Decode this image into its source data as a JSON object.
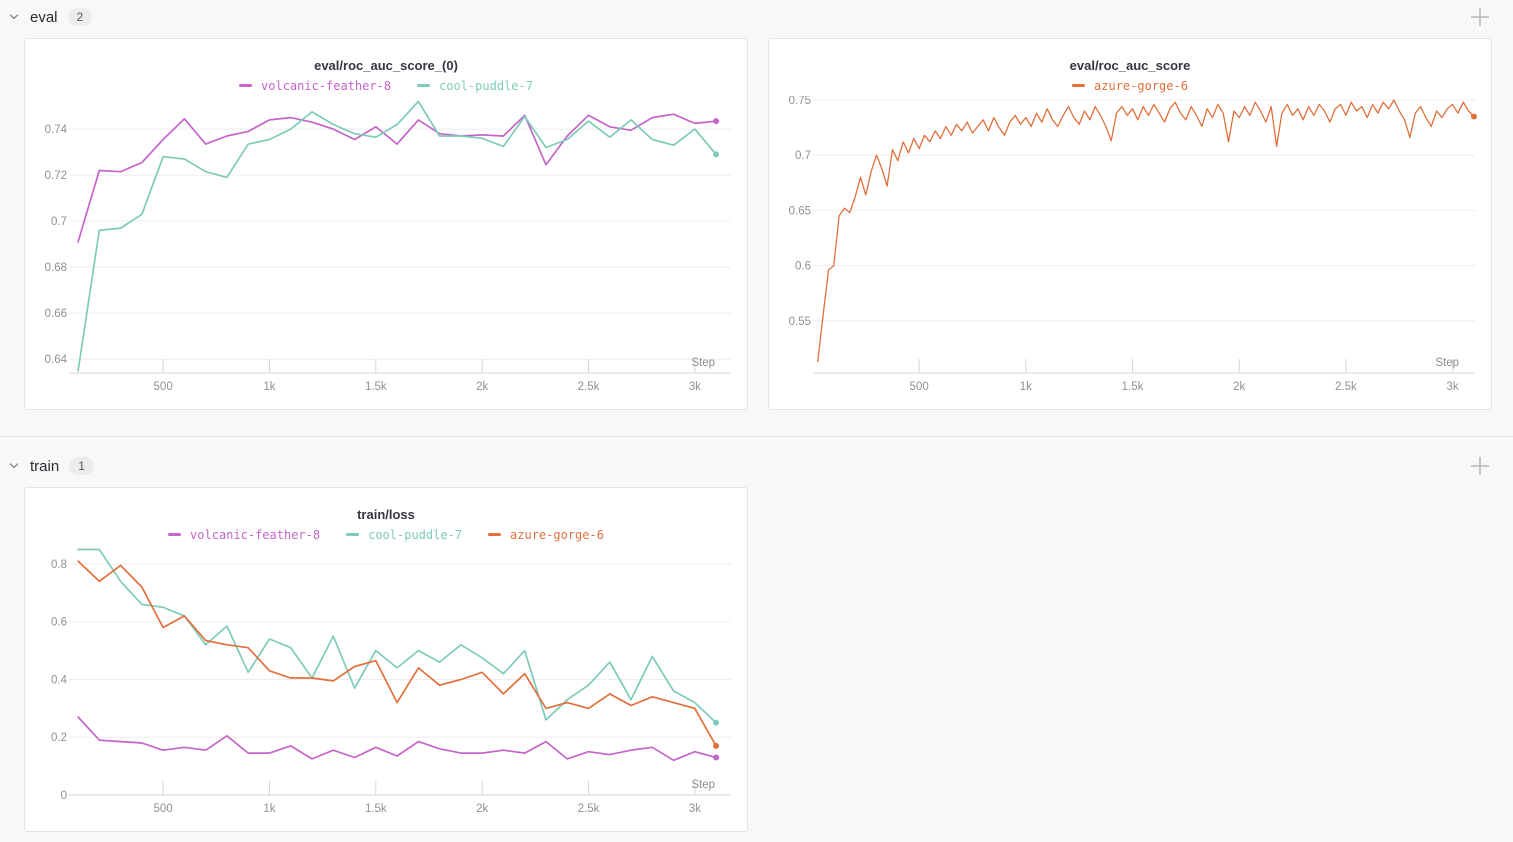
{
  "sections": [
    {
      "label": "eval",
      "count": "2"
    },
    {
      "label": "train",
      "count": "1"
    }
  ],
  "icons": {
    "chevron": "chevron-down",
    "add_panel": "plus"
  },
  "colors": {
    "magenta": "#C564C9",
    "teal": "#7DCBBA",
    "orange": "#E1703C",
    "grid": "#ededee",
    "axis": "#d6d6d8",
    "tick_text": "#8e9095"
  },
  "chart_data": [
    {
      "type": "line",
      "title": "eval/roc_auc_score_(0)",
      "xlabel": "Step",
      "legend_position": "top",
      "grid": "horizontal",
      "x_domain": [
        95,
        3170
      ],
      "y_domain": [
        0.634,
        0.7544
      ],
      "line_width": 1.7,
      "x_ticks": [
        {
          "v": 500,
          "label": "500"
        },
        {
          "v": 1000,
          "label": "1k"
        },
        {
          "v": 1500,
          "label": "1.5k"
        },
        {
          "v": 2000,
          "label": "2k"
        },
        {
          "v": 2500,
          "label": "2.5k"
        },
        {
          "v": 3000,
          "label": "3k"
        }
      ],
      "y_ticks": [
        {
          "v": 0.64,
          "label": "0.64"
        },
        {
          "v": 0.66,
          "label": "0.66"
        },
        {
          "v": 0.68,
          "label": "0.68"
        },
        {
          "v": 0.7,
          "label": "0.7"
        },
        {
          "v": 0.72,
          "label": "0.72"
        },
        {
          "v": 0.74,
          "label": "0.74"
        }
      ],
      "series": [
        {
          "name": "volcanic-feather-8",
          "color": "#C564C9",
          "x_start": 100,
          "x_step": 100,
          "values": [
            0.691,
            0.722,
            0.7215,
            0.7255,
            0.7355,
            0.7445,
            0.7335,
            0.737,
            0.739,
            0.744,
            0.745,
            0.743,
            0.74,
            0.7355,
            0.741,
            0.7335,
            0.744,
            0.738,
            0.737,
            0.7375,
            0.737,
            0.746,
            0.7245,
            0.737,
            0.746,
            0.741,
            0.7395,
            0.745,
            0.7465,
            0.7425,
            0.7435
          ]
        },
        {
          "name": "cool-puddle-7",
          "color": "#7DCBBA",
          "x_start": 100,
          "x_step": 100,
          "values": [
            0.635,
            0.696,
            0.697,
            0.703,
            0.728,
            0.727,
            0.7215,
            0.719,
            0.7335,
            0.7355,
            0.74,
            0.7475,
            0.742,
            0.738,
            0.7365,
            0.742,
            0.752,
            0.737,
            0.737,
            0.736,
            0.7325,
            0.7455,
            0.732,
            0.7355,
            0.7435,
            0.7365,
            0.744,
            0.7355,
            0.733,
            0.74,
            0.729
          ]
        }
      ]
    },
    {
      "type": "line",
      "title": "eval/roc_auc_score",
      "xlabel": "Step",
      "legend_position": "top",
      "grid": "horizontal",
      "x_domain": [
        40,
        3105
      ],
      "y_domain": [
        0.5027,
        0.7536
      ],
      "line_width": 1.3,
      "x_ticks": [
        {
          "v": 500,
          "label": "500"
        },
        {
          "v": 1000,
          "label": "1k"
        },
        {
          "v": 1500,
          "label": "1.5k"
        },
        {
          "v": 2000,
          "label": "2k"
        },
        {
          "v": 2500,
          "label": "2.5k"
        },
        {
          "v": 3000,
          "label": "3k"
        }
      ],
      "y_ticks": [
        {
          "v": 0.55,
          "label": "0.55"
        },
        {
          "v": 0.6,
          "label": "0.6"
        },
        {
          "v": 0.65,
          "label": "0.65"
        },
        {
          "v": 0.7,
          "label": "0.7"
        },
        {
          "v": 0.75,
          "label": "0.75"
        }
      ],
      "series": [
        {
          "name": "azure-gorge-6",
          "color": "#E1703C",
          "x_start": 25,
          "x_step": 25,
          "values": [
            0.513,
            0.555,
            0.596,
            0.6,
            0.645,
            0.652,
            0.648,
            0.662,
            0.68,
            0.664,
            0.685,
            0.7,
            0.688,
            0.672,
            0.705,
            0.695,
            0.712,
            0.702,
            0.715,
            0.706,
            0.718,
            0.712,
            0.722,
            0.715,
            0.726,
            0.718,
            0.728,
            0.722,
            0.73,
            0.72,
            0.726,
            0.732,
            0.722,
            0.734,
            0.725,
            0.718,
            0.73,
            0.736,
            0.728,
            0.734,
            0.726,
            0.738,
            0.73,
            0.742,
            0.732,
            0.726,
            0.736,
            0.744,
            0.734,
            0.728,
            0.74,
            0.732,
            0.744,
            0.736,
            0.726,
            0.713,
            0.738,
            0.744,
            0.736,
            0.742,
            0.732,
            0.744,
            0.736,
            0.746,
            0.738,
            0.73,
            0.742,
            0.748,
            0.738,
            0.732,
            0.744,
            0.736,
            0.726,
            0.742,
            0.734,
            0.746,
            0.738,
            0.712,
            0.74,
            0.734,
            0.744,
            0.736,
            0.748,
            0.74,
            0.73,
            0.744,
            0.708,
            0.738,
            0.746,
            0.736,
            0.742,
            0.732,
            0.744,
            0.736,
            0.746,
            0.74,
            0.73,
            0.742,
            0.746,
            0.736,
            0.748,
            0.74,
            0.744,
            0.734,
            0.746,
            0.738,
            0.748,
            0.742,
            0.75,
            0.74,
            0.732,
            0.716,
            0.738,
            0.744,
            0.734,
            0.726,
            0.74,
            0.734,
            0.742,
            0.746,
            0.738,
            0.748,
            0.74,
            0.735
          ]
        }
      ]
    },
    {
      "type": "line",
      "title": "train/loss",
      "xlabel": "Step",
      "legend_position": "top",
      "grid": "horizontal",
      "x_domain": [
        95,
        3170
      ],
      "y_domain": [
        0,
        0.8656
      ],
      "line_width": 1.7,
      "x_ticks": [
        {
          "v": 500,
          "label": "500"
        },
        {
          "v": 1000,
          "label": "1k"
        },
        {
          "v": 1500,
          "label": "1.5k"
        },
        {
          "v": 2000,
          "label": "2k"
        },
        {
          "v": 2500,
          "label": "2.5k"
        },
        {
          "v": 3000,
          "label": "3k"
        }
      ],
      "y_ticks": [
        {
          "v": 0,
          "label": "0"
        },
        {
          "v": 0.2,
          "label": "0.2"
        },
        {
          "v": 0.4,
          "label": "0.4"
        },
        {
          "v": 0.6,
          "label": "0.6"
        },
        {
          "v": 0.8,
          "label": "0.8"
        }
      ],
      "series": [
        {
          "name": "volcanic-feather-8",
          "color": "#C564C9",
          "x_start": 100,
          "x_step": 100,
          "values": [
            0.27,
            0.19,
            0.185,
            0.18,
            0.155,
            0.165,
            0.155,
            0.205,
            0.145,
            0.145,
            0.17,
            0.125,
            0.155,
            0.13,
            0.165,
            0.135,
            0.185,
            0.16,
            0.145,
            0.145,
            0.155,
            0.145,
            0.185,
            0.125,
            0.15,
            0.14,
            0.155,
            0.165,
            0.12,
            0.15,
            0.13
          ]
        },
        {
          "name": "cool-puddle-7",
          "color": "#7DCBBA",
          "x_start": 100,
          "x_step": 100,
          "values": [
            0.85,
            0.85,
            0.74,
            0.66,
            0.65,
            0.62,
            0.52,
            0.585,
            0.425,
            0.54,
            0.51,
            0.405,
            0.55,
            0.37,
            0.5,
            0.44,
            0.5,
            0.46,
            0.52,
            0.475,
            0.42,
            0.5,
            0.26,
            0.33,
            0.38,
            0.46,
            0.33,
            0.48,
            0.36,
            0.32,
            0.25
          ]
        },
        {
          "name": "azure-gorge-6",
          "color": "#E1703C",
          "x_start": 100,
          "x_step": 100,
          "values": [
            0.81,
            0.74,
            0.795,
            0.72,
            0.58,
            0.62,
            0.535,
            0.52,
            0.51,
            0.43,
            0.405,
            0.405,
            0.395,
            0.445,
            0.465,
            0.32,
            0.44,
            0.38,
            0.4,
            0.425,
            0.35,
            0.42,
            0.3,
            0.32,
            0.3,
            0.35,
            0.31,
            0.34,
            0.32,
            0.3,
            0.17
          ]
        }
      ]
    }
  ]
}
